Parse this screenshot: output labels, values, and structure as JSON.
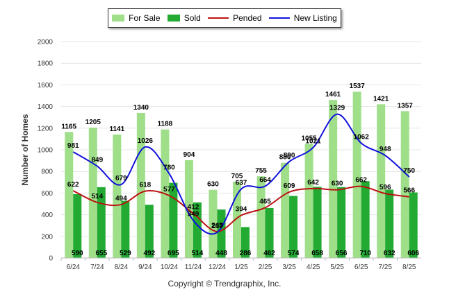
{
  "chart_data": {
    "type": "bar",
    "ylabel": "Number of Homes",
    "xlabel": "",
    "ylim": [
      0,
      2000
    ],
    "yticks": [
      0,
      200,
      400,
      600,
      800,
      1000,
      1200,
      1400,
      1600,
      1800,
      2000
    ],
    "grid": true,
    "legend_position": "top-center",
    "categories": [
      "6/24",
      "7/24",
      "8/24",
      "9/24",
      "10/24",
      "11/24",
      "12/24",
      "1/25",
      "2/25",
      "3/25",
      "4/25",
      "5/25",
      "6/25",
      "7/25",
      "8/25"
    ],
    "series": [
      {
        "name": "For Sale",
        "type": "bar",
        "color": "#9fdf8a",
        "values": [
          1165,
          1205,
          1141,
          1340,
          1188,
          904,
          630,
          705,
          755,
          880,
          1055,
          1461,
          1537,
          1421,
          1357
        ]
      },
      {
        "name": "Sold",
        "type": "bar",
        "color": "#22aa33",
        "values": [
          590,
          655,
          529,
          492,
          695,
          514,
          448,
          286,
          462,
          574,
          658,
          656,
          710,
          632,
          606
        ]
      },
      {
        "name": "Pended",
        "type": "line",
        "color": "#bb1111",
        "values": [
          622,
          514,
          494,
          618,
          577,
          412,
          245,
          394,
          465,
          609,
          642,
          630,
          662,
          596,
          566
        ]
      },
      {
        "name": "New Listing",
        "type": "line",
        "color": "#1111dd",
        "values": [
          981,
          849,
          679,
          1026,
          780,
          349,
          237,
          637,
          664,
          890,
          1021,
          1329,
          1062,
          948,
          750
        ]
      }
    ]
  },
  "copyright": "Copyright © Trendgraphix, Inc."
}
